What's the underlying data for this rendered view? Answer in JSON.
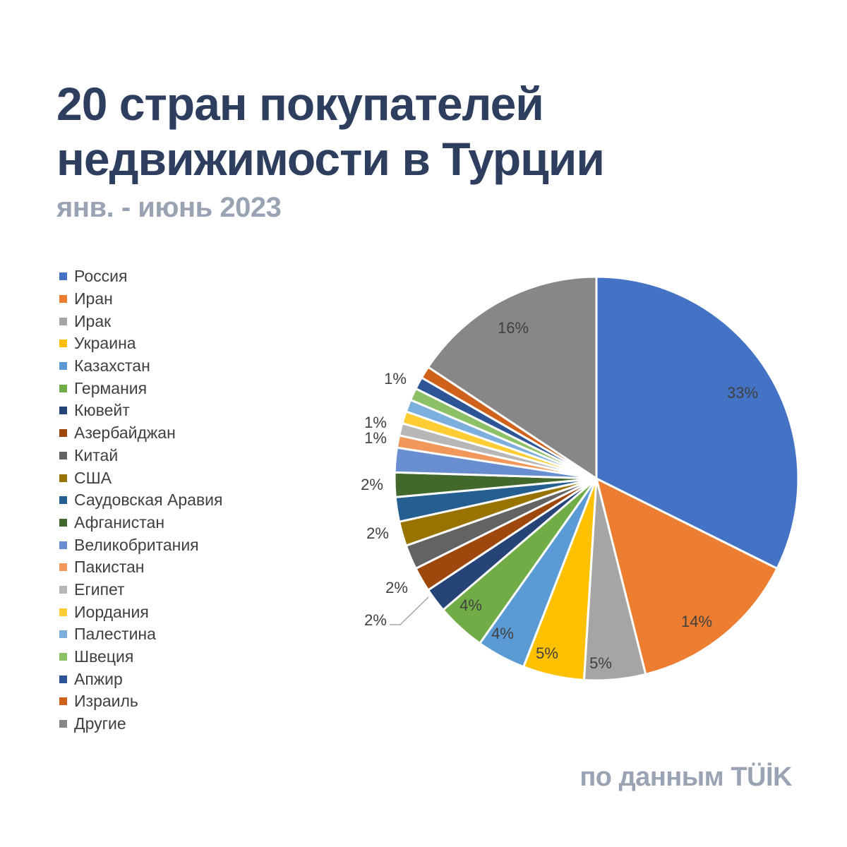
{
  "title_line1": "20 стран покупателей",
  "title_line2": "недвижимости в Турции",
  "subtitle": "янв. - июнь 2023",
  "footer": "по данным TÜİK",
  "chart_data": {
    "type": "pie",
    "title": "20 стран покупателей недвижимости в Турции",
    "subtitle": "янв. - июнь 2023",
    "legend_position": "left",
    "start_angle_deg": 0,
    "direction": "clockwise",
    "slices": [
      {
        "label": "Россия",
        "value": 33,
        "data_label": "33%",
        "color": "#4472c4"
      },
      {
        "label": "Иран",
        "value": 14,
        "data_label": "14%",
        "color": "#ed7d31"
      },
      {
        "label": "Ирак",
        "value": 5,
        "data_label": "5%",
        "color": "#a5a5a5"
      },
      {
        "label": "Украина",
        "value": 5,
        "data_label": "5%",
        "color": "#ffc000"
      },
      {
        "label": "Казахстан",
        "value": 4,
        "data_label": "4%",
        "color": "#5b9bd5"
      },
      {
        "label": "Германия",
        "value": 4,
        "data_label": "4%",
        "color": "#70ad47"
      },
      {
        "label": "Кювейт",
        "value": 2,
        "data_label": "2%",
        "color": "#264478"
      },
      {
        "label": "Азербайджан",
        "value": 2,
        "data_label": "2%",
        "color": "#9e480e"
      },
      {
        "label": "Китай",
        "value": 2,
        "data_label": "2%",
        "color": "#636363"
      },
      {
        "label": "США",
        "value": 2,
        "data_label": "2%",
        "color": "#997300"
      },
      {
        "label": "Саудовская Аравия",
        "value": 2,
        "data_label": "",
        "color": "#255e91"
      },
      {
        "label": "Афганистан",
        "value": 2,
        "data_label": "2%",
        "color": "#43682b"
      },
      {
        "label": "Великобритания",
        "value": 2,
        "data_label": "",
        "color": "#698ed0"
      },
      {
        "label": "Пакистан",
        "value": 1,
        "data_label": "1%",
        "color": "#f1975a"
      },
      {
        "label": "Египет",
        "value": 1,
        "data_label": "1%",
        "color": "#b7b7b7"
      },
      {
        "label": "Иордания",
        "value": 1,
        "data_label": "",
        "color": "#ffcd33"
      },
      {
        "label": "Палестина",
        "value": 1,
        "data_label": "",
        "color": "#7cafdd"
      },
      {
        "label": "Швеция",
        "value": 1,
        "data_label": "",
        "color": "#8cc168"
      },
      {
        "label": "Апжир",
        "value": 1,
        "data_label": "",
        "color": "#2e5597"
      },
      {
        "label": "Израиль",
        "value": 1,
        "data_label": "1%",
        "color": "#d0611b"
      },
      {
        "label": "Другие",
        "value": 16,
        "data_label": "16%",
        "color": "#878787"
      }
    ]
  }
}
